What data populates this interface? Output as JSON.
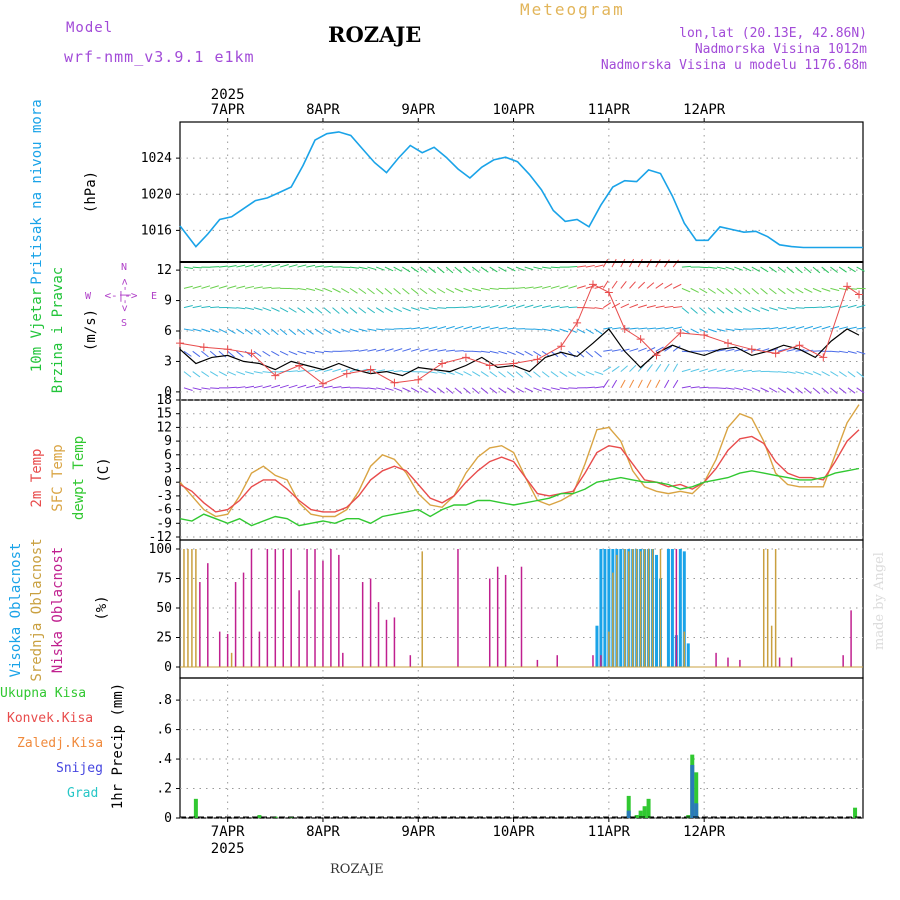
{
  "header": {
    "model_label": "Model",
    "model_version": "wrf-nmm_v3.9.1  e1km",
    "station": "ROZAJE",
    "product": "Meteogram",
    "location_line": "lon,lat (20.13E, 42.86N)",
    "elevation_line": "Nadmorska Visina 1012m",
    "model_elevation_line": "Nadmorska Visina u modelu 1176.68m"
  },
  "footer": {
    "station": "ROZAJE",
    "credit": "made by Angel"
  },
  "colors": {
    "pressure": "#1aa3e8",
    "wind_label": "#22c43a",
    "temp2m": "#e84c4c",
    "sfc_temp": "#d9a443",
    "dewpoint": "#31c831",
    "high_cloud": "#1aa3e8",
    "mid_cloud": "#c9a040",
    "low_cloud": "#c0208f",
    "total_precip": "#31c831",
    "conv_precip": "#e84c4c",
    "frozen_precip": "#f08a3c",
    "snow": "#4646e0",
    "hail": "#26c6c6",
    "dir_label": "#b040c8",
    "grid": "#9a9a9a"
  },
  "time_axis": {
    "year": "2025",
    "days": [
      "7APR",
      "8APR",
      "9APR",
      "10APR",
      "11APR",
      "12APR"
    ]
  },
  "chart_data": [
    {
      "type": "line",
      "title": "",
      "ylabel_outer": "Pritisak na nivou mora",
      "ylabel": "(hPa)",
      "yticks": [
        1016,
        1020,
        1024
      ],
      "ylim": [
        1012.5,
        1028
      ],
      "x_hours_since": "2025-04-06T12",
      "series": [
        {
          "x": [
            0,
            4,
            7,
            10,
            13,
            16,
            19,
            22,
            25,
            28,
            31,
            34,
            37,
            40,
            43,
            46,
            49,
            52,
            55,
            58,
            61,
            64,
            67,
            70,
            73,
            76,
            79,
            82,
            85,
            88,
            91,
            94,
            97,
            100,
            103,
            106,
            109,
            112,
            115,
            118,
            121,
            124,
            127,
            130,
            133,
            136,
            139,
            142,
            145,
            148,
            151,
            154,
            157,
            160,
            163,
            166,
            169,
            172
          ],
          "values": [
            1016.5,
            1014.2,
            1015.6,
            1017.2,
            1017.5,
            1018.4,
            1019.3,
            1019.6,
            1020.2,
            1020.8,
            1023.2,
            1026.0,
            1026.7,
            1026.9,
            1026.5,
            1025.0,
            1023.5,
            1022.4,
            1024.0,
            1025.4,
            1024.6,
            1025.2,
            1024.1,
            1022.8,
            1021.8,
            1023.0,
            1023.8,
            1024.1,
            1023.6,
            1022.2,
            1020.5,
            1018.2,
            1017.0,
            1017.2,
            1016.4,
            1018.8,
            1020.8,
            1021.5,
            1021.4,
            1022.7,
            1022.3,
            1019.8,
            1016.8,
            1014.9,
            1014.9,
            1016.4,
            1016.1,
            1015.8,
            1015.9,
            1015.3,
            1014.4,
            1014.2,
            1014.1,
            1014.1,
            1014.1,
            1014.1,
            1014.1,
            1014.1
          ]
        }
      ]
    },
    {
      "type": "line",
      "title": "",
      "ylabel_outer": [
        "10m Vjetar",
        "Brzina i Pravac"
      ],
      "ylabel": "(m/s)",
      "direction_labels": [
        "N",
        "W",
        "E",
        "S"
      ],
      "direction_axis_text": "<-|->",
      "yticks": [
        0,
        3,
        6,
        9,
        12
      ],
      "ylim": [
        -0.8,
        12.8
      ],
      "x_hours_since": "2025-04-06T12",
      "series": [
        {
          "name": "wind speed",
          "x": [
            0,
            4,
            8,
            12,
            16,
            20,
            24,
            28,
            32,
            36,
            40,
            44,
            48,
            52,
            56,
            60,
            64,
            68,
            72,
            76,
            80,
            84,
            88,
            92,
            96,
            100,
            104,
            108,
            112,
            116,
            120,
            124,
            128,
            132,
            136,
            140,
            144,
            148,
            152,
            156,
            160,
            164,
            168,
            171
          ],
          "values": [
            4.2,
            2.8,
            3.4,
            3.6,
            3.0,
            2.8,
            2.2,
            3.0,
            2.6,
            2.2,
            2.8,
            2.2,
            1.8,
            2.0,
            1.6,
            2.4,
            2.2,
            2.0,
            2.6,
            3.4,
            2.4,
            2.6,
            2.0,
            3.4,
            3.9,
            3.5,
            4.8,
            6.2,
            4.0,
            2.4,
            3.8,
            4.6,
            4.0,
            3.6,
            4.2,
            4.4,
            3.6,
            4.0,
            4.6,
            4.2,
            3.4,
            5.0,
            6.2,
            5.6
          ]
        },
        {
          "name": "wind gust",
          "x": [
            0,
            6,
            12,
            18,
            24,
            30,
            36,
            42,
            48,
            54,
            60,
            66,
            72,
            78,
            84,
            90,
            96,
            100,
            104,
            108,
            112,
            116,
            120,
            126,
            132,
            138,
            144,
            150,
            156,
            162,
            168,
            171
          ],
          "values": [
            4.8,
            4.4,
            4.2,
            3.8,
            1.6,
            2.6,
            0.8,
            1.8,
            2.2,
            0.9,
            1.2,
            2.8,
            3.4,
            2.6,
            2.8,
            3.2,
            4.5,
            6.8,
            10.6,
            9.8,
            6.2,
            5.2,
            3.6,
            5.8,
            5.6,
            4.8,
            4.2,
            3.8,
            4.6,
            3.4,
            10.4,
            9.6
          ]
        }
      ]
    },
    {
      "type": "line",
      "title": "",
      "ylabel_outer": [
        "2m Temp",
        "SFC Temp",
        "dewpt Temp"
      ],
      "ylabel": "(C)",
      "yticks": [
        -12,
        -9,
        -6,
        -3,
        0,
        3,
        6,
        9,
        12,
        15,
        18
      ],
      "ylim": [
        -12,
        18
      ],
      "x_hours_since": "2025-04-06T12",
      "series": [
        {
          "name": "2m Temp",
          "x": [
            0,
            3,
            6,
            9,
            12,
            15,
            18,
            21,
            24,
            27,
            30,
            33,
            36,
            39,
            42,
            45,
            48,
            51,
            54,
            57,
            60,
            63,
            66,
            69,
            72,
            75,
            78,
            81,
            84,
            87,
            90,
            93,
            96,
            99,
            102,
            105,
            108,
            111,
            114,
            117,
            120,
            123,
            126,
            129,
            132,
            135,
            138,
            141,
            144,
            147,
            150,
            153,
            156,
            159,
            162,
            165,
            168,
            171
          ],
          "values": [
            -0.5,
            -2.0,
            -4.5,
            -6.5,
            -6.0,
            -4.0,
            -1.0,
            0.5,
            0.5,
            -1.5,
            -4.0,
            -6.0,
            -6.5,
            -6.5,
            -5.5,
            -3.0,
            0.5,
            2.5,
            3.5,
            2.5,
            -0.5,
            -3.5,
            -4.5,
            -3.0,
            0.0,
            2.5,
            4.5,
            5.5,
            4.5,
            1.0,
            -2.5,
            -3.0,
            -2.5,
            -2.0,
            2.0,
            6.5,
            8.0,
            7.5,
            4.0,
            0.5,
            0.0,
            -1.0,
            -0.5,
            -1.5,
            0.0,
            3.0,
            7.0,
            9.5,
            10.0,
            8.5,
            4.5,
            2.0,
            1.0,
            1.0,
            0.5,
            4.5,
            9.0,
            11.5
          ]
        },
        {
          "name": "SFC Temp",
          "x": [
            0,
            3,
            6,
            9,
            12,
            15,
            18,
            21,
            24,
            27,
            30,
            33,
            36,
            39,
            42,
            45,
            48,
            51,
            54,
            57,
            60,
            63,
            66,
            69,
            72,
            75,
            78,
            81,
            84,
            87,
            90,
            93,
            96,
            99,
            102,
            105,
            108,
            111,
            114,
            117,
            120,
            123,
            126,
            129,
            132,
            135,
            138,
            141,
            144,
            147,
            150,
            153,
            156,
            159,
            162,
            165,
            168,
            171
          ],
          "values": [
            0.0,
            -3.0,
            -6.0,
            -7.5,
            -7.0,
            -3.0,
            2.0,
            3.5,
            1.5,
            0.5,
            -4.5,
            -7.0,
            -7.5,
            -7.5,
            -6.0,
            -2.0,
            3.5,
            6.0,
            5.0,
            2.0,
            -2.5,
            -5.0,
            -5.5,
            -3.0,
            2.0,
            5.5,
            7.5,
            8.0,
            6.5,
            1.0,
            -4.0,
            -5.0,
            -4.0,
            -2.5,
            4.0,
            11.5,
            12.0,
            9.0,
            2.5,
            -1.0,
            -2.0,
            -2.5,
            -2.0,
            -2.5,
            0.0,
            5.0,
            12.0,
            15.0,
            14.0,
            9.0,
            2.0,
            -0.5,
            -1.0,
            -1.0,
            -1.0,
            6.0,
            13.0,
            17.0
          ]
        },
        {
          "name": "dewpt Temp",
          "x": [
            0,
            3,
            6,
            9,
            12,
            15,
            18,
            21,
            24,
            27,
            30,
            33,
            36,
            39,
            42,
            45,
            48,
            51,
            54,
            57,
            60,
            63,
            66,
            69,
            72,
            75,
            78,
            81,
            84,
            87,
            90,
            93,
            96,
            99,
            102,
            105,
            108,
            111,
            114,
            117,
            120,
            123,
            126,
            129,
            132,
            135,
            138,
            141,
            144,
            147,
            150,
            153,
            156,
            159,
            162,
            165,
            168,
            171
          ],
          "values": [
            -8.0,
            -8.5,
            -7.0,
            -8.0,
            -9.0,
            -8.0,
            -9.5,
            -8.5,
            -7.5,
            -8.0,
            -9.5,
            -9.0,
            -8.5,
            -9.0,
            -8.0,
            -8.0,
            -9.0,
            -7.5,
            -7.0,
            -6.5,
            -6.0,
            -7.5,
            -6.0,
            -5.0,
            -5.0,
            -4.0,
            -4.0,
            -4.5,
            -5.0,
            -4.5,
            -4.0,
            -3.5,
            -2.5,
            -2.5,
            -1.5,
            0.0,
            0.5,
            1.0,
            0.5,
            0.0,
            0.0,
            -0.5,
            -1.5,
            -1.0,
            0.0,
            0.5,
            1.0,
            2.0,
            2.5,
            2.0,
            1.5,
            1.0,
            0.5,
            0.5,
            1.0,
            2.0,
            2.5,
            3.0
          ]
        }
      ]
    },
    {
      "type": "bar",
      "title": "",
      "ylabel_outer": [
        "Visoka Oblacnost",
        "Srednja Oblacnost",
        "Niska Oblacnost"
      ],
      "ylabel": "(%)",
      "yticks": [
        0,
        25,
        50,
        75,
        100
      ],
      "ylim": [
        0,
        100
      ],
      "x_hours_since": "2025-04-06T12",
      "series": [
        {
          "name": "Niska Oblacnost",
          "x": [
            5,
            7,
            10,
            12,
            14,
            16,
            18,
            20,
            22,
            24,
            26,
            28,
            30,
            32,
            34,
            36,
            38,
            40,
            41,
            46,
            48,
            50,
            52,
            54,
            58,
            70,
            78,
            80,
            82,
            86,
            90,
            95,
            104,
            106,
            125,
            135,
            138,
            141,
            151,
            154,
            167,
            169
          ],
          "values": [
            72,
            88,
            30,
            28,
            72,
            80,
            100,
            30,
            100,
            100,
            100,
            100,
            65,
            100,
            100,
            90,
            100,
            95,
            12,
            72,
            75,
            55,
            40,
            42,
            10,
            100,
            75,
            85,
            78,
            85,
            6,
            10,
            10,
            10,
            100,
            12,
            8,
            6,
            8,
            8,
            10,
            48
          ]
        },
        {
          "name": "Srednja Oblacnost",
          "x": [
            1,
            2,
            3,
            4,
            13,
            61,
            108,
            109,
            110,
            112,
            113,
            114,
            115,
            116,
            117,
            118,
            119,
            121,
            127,
            147,
            148,
            149,
            150
          ],
          "values": [
            100,
            100,
            100,
            100,
            12,
            98,
            30,
            80,
            95,
            100,
            98,
            100,
            100,
            98,
            100,
            100,
            100,
            100,
            30,
            100,
            100,
            35,
            100
          ]
        },
        {
          "name": "Visoka Oblacnost",
          "x": [
            105,
            106,
            107,
            108,
            109,
            110,
            111,
            112,
            113,
            114,
            115,
            116,
            117,
            118,
            119,
            120,
            121,
            123,
            124,
            125,
            126,
            127,
            128
          ],
          "values": [
            35,
            100,
            100,
            100,
            100,
            100,
            100,
            100,
            100,
            100,
            100,
            100,
            100,
            100,
            100,
            95,
            75,
            100,
            100,
            27,
            100,
            98,
            20
          ]
        }
      ]
    },
    {
      "type": "bar",
      "title": "",
      "ylabel_outer": "1hr Precip",
      "ylabel": "(mm)",
      "legend": [
        "Ukupna Kisa",
        "Konvek.Kisa",
        "Zaledj.Kisa",
        "Snijeg",
        "Grad"
      ],
      "yticks": [
        0,
        0.2,
        0.4,
        0.6,
        0.8
      ],
      "ylim": [
        0,
        0.95
      ],
      "x_hours_since": "2025-04-06T12",
      "series": [
        {
          "name": "Ukupna Kisa",
          "x": [
            4,
            20,
            24,
            28,
            113,
            115,
            116,
            117,
            118,
            128,
            129,
            130,
            170
          ],
          "values": [
            0.13,
            0.02,
            0.01,
            0.01,
            0.15,
            0.02,
            0.05,
            0.08,
            0.13,
            0.02,
            0.43,
            0.31,
            0.07
          ]
        },
        {
          "name": "Snijeg",
          "x": [
            113,
            129,
            130
          ],
          "values": [
            0.05,
            0.36,
            0.1
          ]
        }
      ]
    }
  ]
}
